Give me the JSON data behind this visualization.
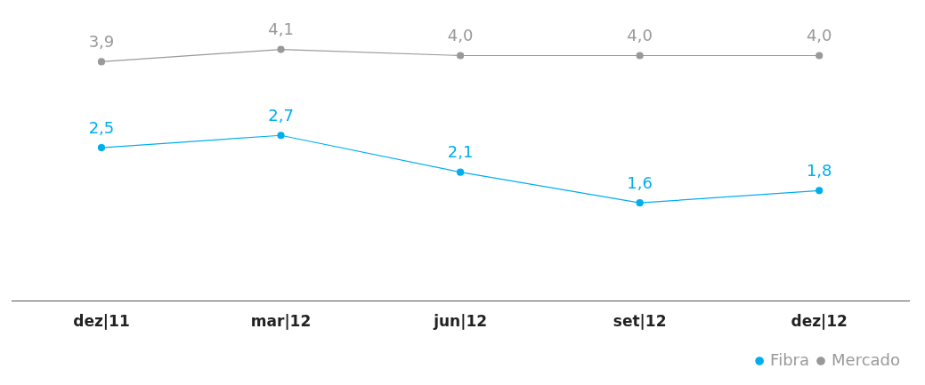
{
  "chart_data": {
    "type": "line",
    "categories": [
      "dez|11",
      "mar|12",
      "jun|12",
      "set|12",
      "dez|12"
    ],
    "series": [
      {
        "name": "Fibra",
        "color": "#00aeef",
        "values": [
          2.5,
          2.7,
          2.1,
          1.6,
          1.8
        ],
        "value_labels": [
          "2,5",
          "2,7",
          "2,1",
          "1,6",
          "1,8"
        ]
      },
      {
        "name": "Mercado",
        "color": "#999999",
        "values": [
          3.9,
          4.1,
          4.0,
          4.0,
          4.0
        ],
        "value_labels": [
          "3,9",
          "4,1",
          "4,0",
          "4,0",
          "4,0"
        ]
      }
    ],
    "legend": "bottom right",
    "marker": "circle",
    "grid": false
  }
}
